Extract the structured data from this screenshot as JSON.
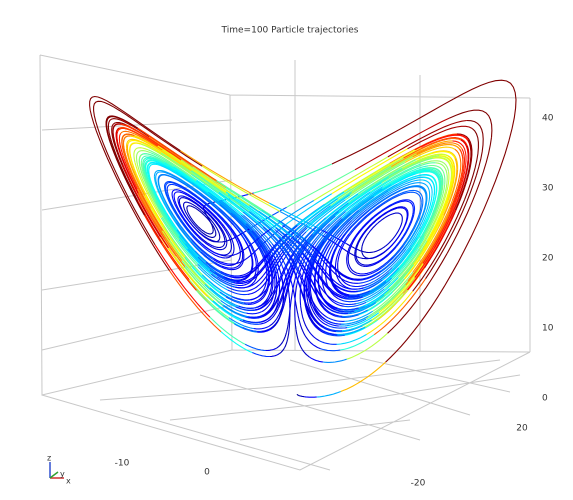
{
  "chart_data": {
    "type": "trajectory3d",
    "title": "Time=100  Particle trajectories",
    "xticks": [
      -10,
      0
    ],
    "yticks": [
      20,
      -20
    ],
    "zticks": [
      0,
      10,
      20,
      30,
      40
    ]
  }
}
